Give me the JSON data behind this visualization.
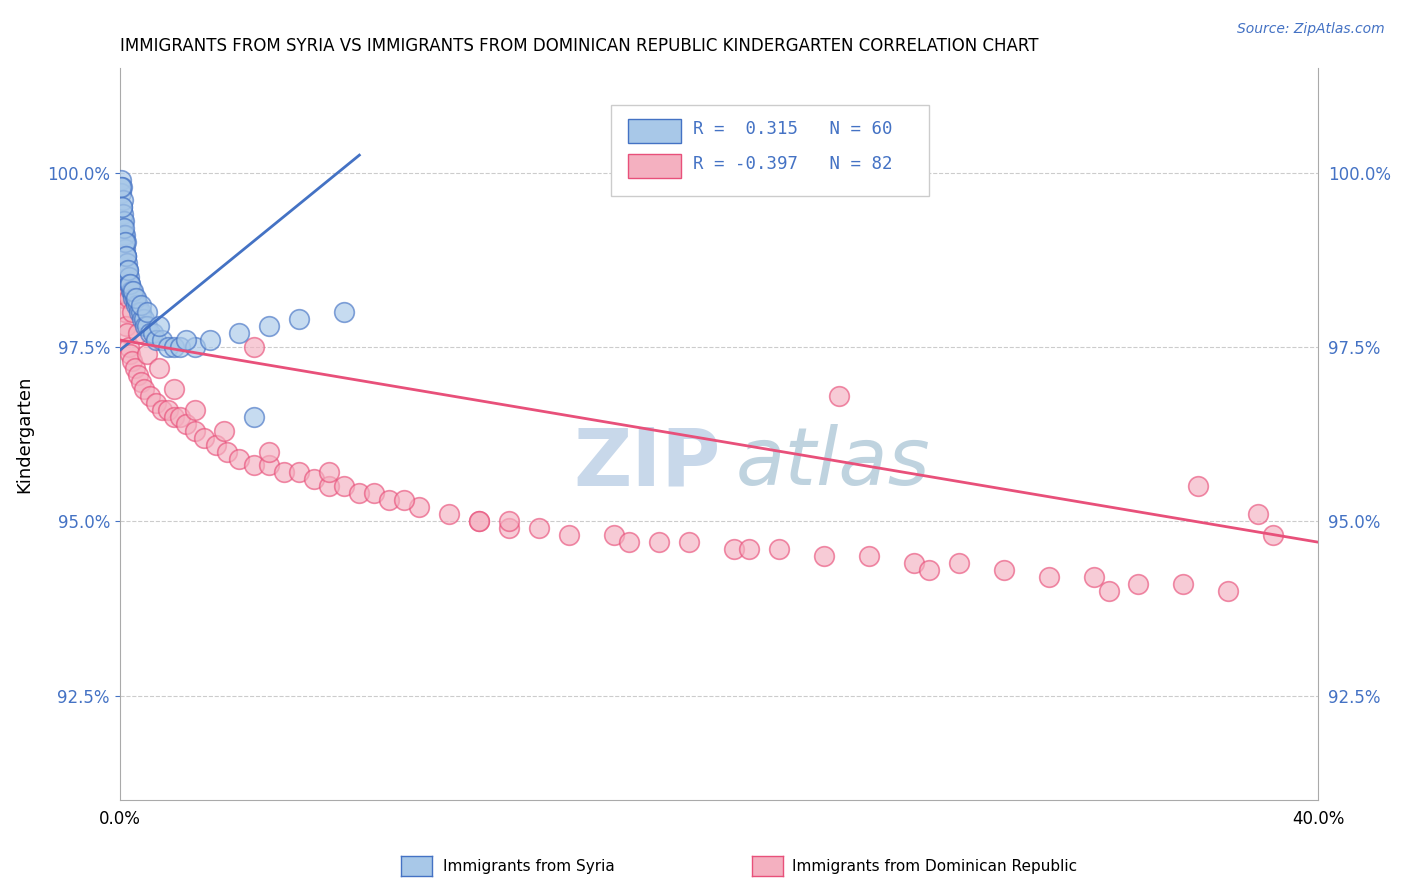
{
  "title": "IMMIGRANTS FROM SYRIA VS IMMIGRANTS FROM DOMINICAN REPUBLIC KINDERGARTEN CORRELATION CHART",
  "source": "Source: ZipAtlas.com",
  "ylabel": "Kindergarten",
  "yticks": [
    92.5,
    95.0,
    97.5,
    100.0
  ],
  "ytick_labels": [
    "92.5%",
    "95.0%",
    "97.5%",
    "100.0%"
  ],
  "xlim": [
    0.0,
    40.0
  ],
  "ylim": [
    91.0,
    101.5
  ],
  "color_syria": "#a8c8e8",
  "color_dr": "#f4b0c0",
  "color_line_syria": "#4472c4",
  "color_line_dr": "#e8507a",
  "color_axis": "#4472c4",
  "watermark_zip_color": "#c8d8ea",
  "watermark_atlas_color": "#b0c8d8",
  "syria_trendline_x": [
    0.0,
    8.0
  ],
  "syria_trendline_y": [
    97.45,
    100.25
  ],
  "dr_trendline_x": [
    0.0,
    40.0
  ],
  "dr_trendline_y": [
    97.6,
    94.7
  ],
  "syria_x": [
    0.05,
    0.05,
    0.08,
    0.08,
    0.1,
    0.1,
    0.12,
    0.12,
    0.15,
    0.15,
    0.18,
    0.18,
    0.2,
    0.2,
    0.22,
    0.25,
    0.25,
    0.28,
    0.3,
    0.3,
    0.35,
    0.38,
    0.4,
    0.45,
    0.5,
    0.55,
    0.6,
    0.65,
    0.7,
    0.75,
    0.8,
    0.85,
    0.9,
    1.0,
    1.1,
    1.2,
    1.4,
    1.6,
    1.8,
    2.0,
    2.5,
    3.0,
    4.0,
    5.0,
    6.0,
    7.5,
    0.06,
    0.09,
    0.13,
    0.17,
    0.22,
    0.28,
    0.35,
    0.45,
    0.55,
    0.7,
    0.9,
    1.3,
    2.2,
    4.5
  ],
  "syria_y": [
    99.9,
    99.7,
    99.8,
    99.5,
    99.6,
    99.3,
    99.4,
    99.2,
    99.3,
    99.1,
    99.1,
    98.9,
    99.0,
    98.8,
    98.8,
    98.7,
    98.6,
    98.6,
    98.5,
    98.4,
    98.4,
    98.3,
    98.3,
    98.2,
    98.2,
    98.1,
    98.1,
    98.0,
    98.0,
    97.9,
    97.9,
    97.8,
    97.8,
    97.7,
    97.7,
    97.6,
    97.6,
    97.5,
    97.5,
    97.5,
    97.5,
    97.6,
    97.7,
    97.8,
    97.9,
    98.0,
    99.8,
    99.5,
    99.2,
    99.0,
    98.8,
    98.6,
    98.4,
    98.3,
    98.2,
    98.1,
    98.0,
    97.8,
    97.6,
    96.5
  ],
  "dr_x": [
    0.05,
    0.1,
    0.12,
    0.15,
    0.18,
    0.2,
    0.25,
    0.3,
    0.35,
    0.4,
    0.5,
    0.6,
    0.7,
    0.8,
    1.0,
    1.2,
    1.4,
    1.6,
    1.8,
    2.0,
    2.2,
    2.5,
    2.8,
    3.2,
    3.6,
    4.0,
    4.5,
    5.0,
    5.5,
    6.0,
    6.5,
    7.0,
    7.5,
    8.0,
    8.5,
    9.0,
    10.0,
    11.0,
    12.0,
    13.0,
    14.0,
    15.0,
    16.5,
    18.0,
    19.0,
    20.5,
    22.0,
    23.5,
    25.0,
    26.5,
    28.0,
    29.5,
    31.0,
    32.5,
    34.0,
    35.5,
    37.0,
    38.5,
    0.08,
    0.15,
    0.22,
    0.3,
    0.4,
    0.6,
    0.9,
    1.3,
    1.8,
    2.5,
    3.5,
    5.0,
    7.0,
    9.5,
    13.0,
    17.0,
    21.0,
    27.0,
    33.0,
    38.0,
    4.5,
    12.0,
    24.0,
    36.0
  ],
  "dr_y": [
    98.8,
    98.5,
    98.3,
    98.2,
    98.0,
    97.8,
    97.7,
    97.5,
    97.4,
    97.3,
    97.2,
    97.1,
    97.0,
    96.9,
    96.8,
    96.7,
    96.6,
    96.6,
    96.5,
    96.5,
    96.4,
    96.3,
    96.2,
    96.1,
    96.0,
    95.9,
    95.8,
    95.8,
    95.7,
    95.7,
    95.6,
    95.5,
    95.5,
    95.4,
    95.4,
    95.3,
    95.2,
    95.1,
    95.0,
    94.9,
    94.9,
    94.8,
    94.8,
    94.7,
    94.7,
    94.6,
    94.6,
    94.5,
    94.5,
    94.4,
    94.4,
    94.3,
    94.2,
    94.2,
    94.1,
    94.1,
    94.0,
    94.8,
    99.1,
    98.8,
    98.5,
    98.2,
    98.0,
    97.7,
    97.4,
    97.2,
    96.9,
    96.6,
    96.3,
    96.0,
    95.7,
    95.3,
    95.0,
    94.7,
    94.6,
    94.3,
    94.0,
    95.1,
    97.5,
    95.0,
    96.8,
    95.5
  ]
}
